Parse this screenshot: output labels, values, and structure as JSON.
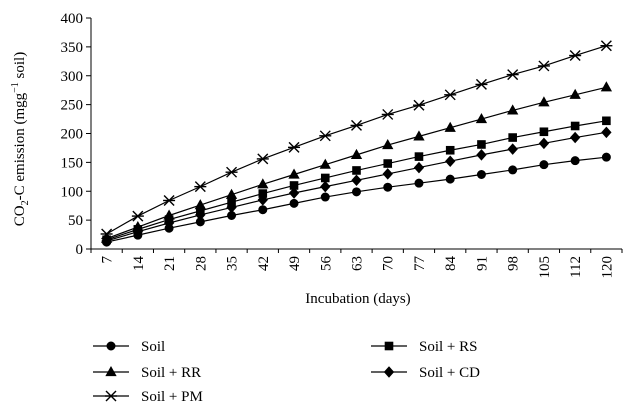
{
  "chart_data": {
    "type": "line",
    "x": [
      7,
      14,
      21,
      28,
      35,
      42,
      49,
      56,
      63,
      70,
      77,
      84,
      91,
      98,
      105,
      112,
      120
    ],
    "xlabel": "Incubation (days)",
    "ylabel": "CO2-C emission (mgg-1 soil)",
    "ylim": [
      0,
      400
    ],
    "yticks": [
      0,
      50,
      100,
      150,
      200,
      250,
      300,
      350,
      400
    ],
    "legend_position": "bottom",
    "series": [
      {
        "name": "Soil",
        "marker": "circle",
        "values": [
          12,
          24,
          36,
          47,
          58,
          68,
          79,
          90,
          99,
          107,
          114,
          121,
          129,
          137,
          146,
          153,
          159
        ]
      },
      {
        "name": "Soil + RS",
        "marker": "square",
        "values": [
          16,
          34,
          51,
          66,
          81,
          96,
          110,
          123,
          136,
          148,
          160,
          171,
          181,
          193,
          203,
          213,
          222
        ]
      },
      {
        "name": "Soil + RR",
        "marker": "triangle",
        "values": [
          18,
          38,
          58,
          76,
          94,
          112,
          129,
          146,
          163,
          180,
          195,
          210,
          225,
          240,
          254,
          267,
          280
        ]
      },
      {
        "name": "Soil + CD",
        "marker": "diamond",
        "values": [
          14,
          30,
          45,
          59,
          72,
          85,
          97,
          108,
          119,
          130,
          141,
          152,
          163,
          173,
          183,
          193,
          202
        ]
      },
      {
        "name": "Soil + PM",
        "marker": "asterisk",
        "values": [
          26,
          57,
          84,
          108,
          133,
          156,
          176,
          196,
          214,
          233,
          249,
          267,
          285,
          302,
          317,
          335,
          352
        ]
      }
    ]
  }
}
